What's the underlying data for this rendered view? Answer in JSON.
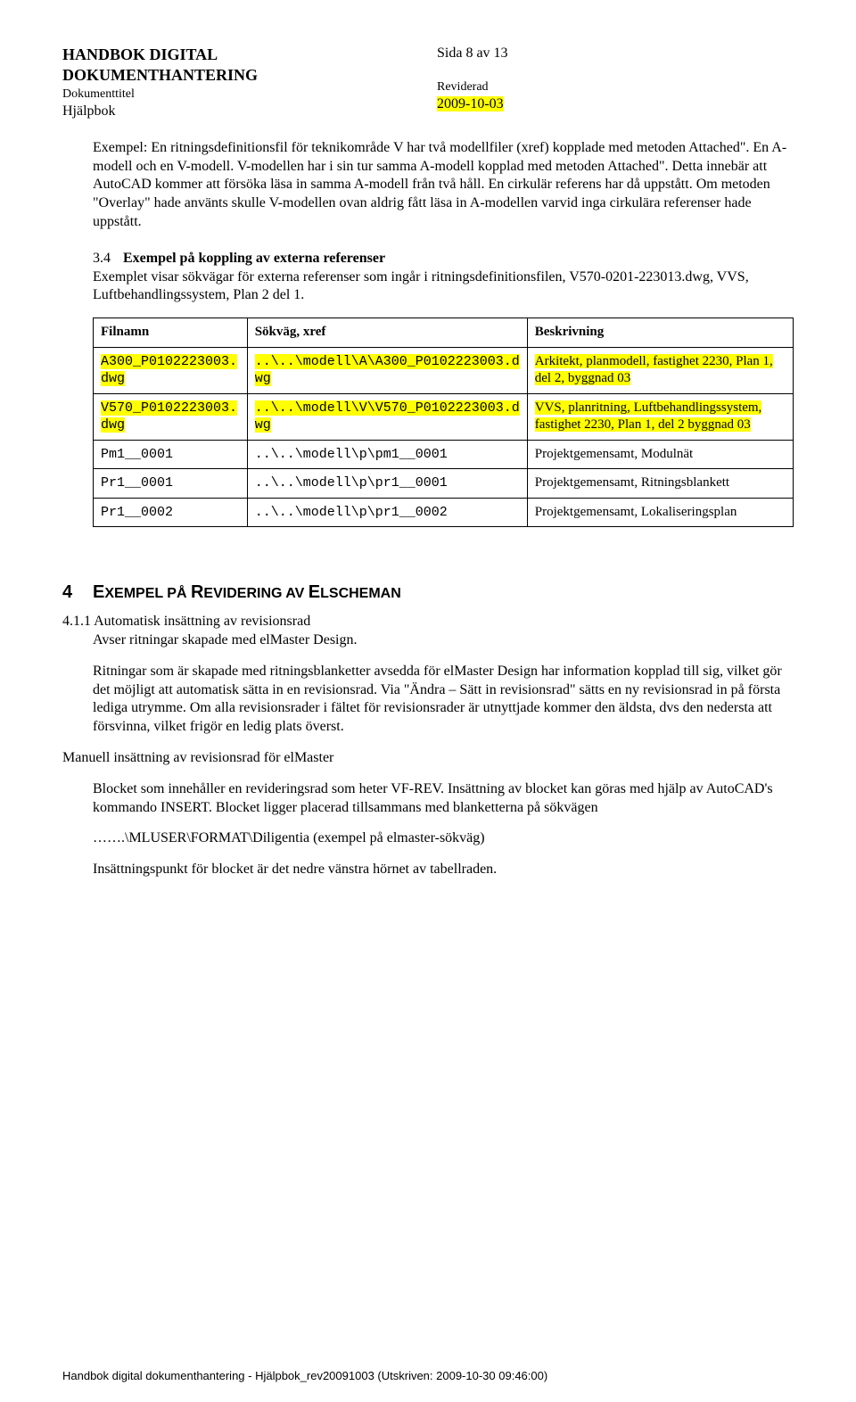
{
  "header": {
    "title_line1": "HANDBOK DIGITAL",
    "title_line2": "DOKUMENTHANTERING",
    "doc_title_label": "Dokumenttitel",
    "helpbook": "Hjälpbok",
    "page_info": "Sida 8 av 13",
    "reviderad": "Reviderad",
    "date": "2009-10-03"
  },
  "para1": "Exempel: En ritningsdefinitionsfil för teknikområde V har två modellfiler (xref) kopplade med metoden Attached\". En A-modell och en V-modell. V-modellen har i sin tur samma A-modell kopplad med metoden Attached\". Detta innebär att AutoCAD kommer att försöka läsa in samma A-modell från två håll. En cirkulär referens har då uppstått. Om metoden \"Overlay\" hade använts skulle V-modellen ovan aldrig fått läsa in A-modellen varvid inga cirkulära referenser hade uppstått.",
  "sec34": {
    "num": "3.4",
    "title": "Exempel på koppling av externa referenser",
    "text": "Exemplet visar sökvägar för externa referenser som ingår i ritningsdefinitionsfilen, V570-0201-223013.dwg, VVS, Luftbehandlingssystem, Plan 2 del 1."
  },
  "table": {
    "headers": [
      "Filnamn",
      "Sökväg, xref",
      "Beskrivning"
    ],
    "rows": [
      {
        "filnamn": {
          "pre": "A300_P0102223003.",
          "line2": "dwg",
          "hl": true,
          "mono": true
        },
        "sokvag": {
          "pre": "..\\..\\modell\\A\\A300_P0102223003.d",
          "line2": "wg",
          "hl": true,
          "mono": true
        },
        "besk": {
          "text": "Arkitekt, planmodell, fastighet 2230, Plan 1, del 2, byggnad 03",
          "hl": true
        }
      },
      {
        "filnamn": {
          "pre": "V570_P0102223003.",
          "line2": "dwg",
          "hl": true,
          "mono": true
        },
        "sokvag": {
          "pre": "..\\..\\modell\\V\\V570_P0102223003.d",
          "line2": "wg",
          "hl": true,
          "mono": true
        },
        "besk": {
          "text": "VVS, planritning, Luftbehandlingssystem, fastighet 2230, Plan 1, del 2 byggnad 03",
          "hl": true
        }
      },
      {
        "filnamn": {
          "pre": "Pm1__0001",
          "mono": true
        },
        "sokvag": {
          "pre": "..\\..\\modell\\p\\pm1__0001",
          "mono": true
        },
        "besk": {
          "text": "Projektgemensamt, Modulnät"
        }
      },
      {
        "filnamn": {
          "pre": "Pr1__0001",
          "mono": true
        },
        "sokvag": {
          "pre": "..\\..\\modell\\p\\pr1__0001",
          "mono": true
        },
        "besk": {
          "text": "Projektgemensamt, Ritningsblankett"
        }
      },
      {
        "filnamn": {
          "pre": "Pr1__0002",
          "mono": true
        },
        "sokvag": {
          "pre": "..\\..\\modell\\p\\pr1__0002",
          "mono": true
        },
        "besk": {
          "text": "Projektgemensamt, Lokaliseringsplan"
        }
      }
    ]
  },
  "sec4": {
    "num": "4",
    "title_pre": "E",
    "title_rest": "XEMPEL PÅ ",
    "title_pre2": "R",
    "title_rest2": "EVIDERING AV ",
    "title_pre3": "E",
    "title_rest3": "LSCHEMAN"
  },
  "sec411": {
    "num": "4.1.1",
    "title": "Automatisk insättning av revisionsrad",
    "line2": "Avser ritningar skapade med elMaster Design.",
    "para": "Ritningar som är skapade med ritningsblanketter avsedda för elMaster Design har information kopplad till sig, vilket gör det möjligt att automatisk sätta in en revisionsrad. Via \"Ändra – Sätt in revisionsrad\" sätts en ny revisionsrad in på första lediga utrymme. Om alla revisionsrader i fältet för revisionsrader är utnyttjade kommer den äldsta, dvs den nedersta att försvinna, vilket frigör en ledig plats överst."
  },
  "manual_heading": "Manuell insättning av revisionsrad för elMaster",
  "manual_para": "Blocket som innehåller en revideringsrad som heter VF-REV. Insättning av blocket kan göras med hjälp av AutoCAD's kommando INSERT. Blocket ligger placerad tillsammans med blanketterna på sökvägen",
  "manual_path": "…….\\MLUSER\\FORMAT\\Diligentia (exempel på elmaster-sökväg)",
  "manual_para2": "Insättningspunkt för blocket är det nedre vänstra hörnet av tabellraden.",
  "footer": "Handbok digital dokumenthantering - Hjälpbok_rev20091003 (Utskriven: 2009-10-30 09:46:00)"
}
